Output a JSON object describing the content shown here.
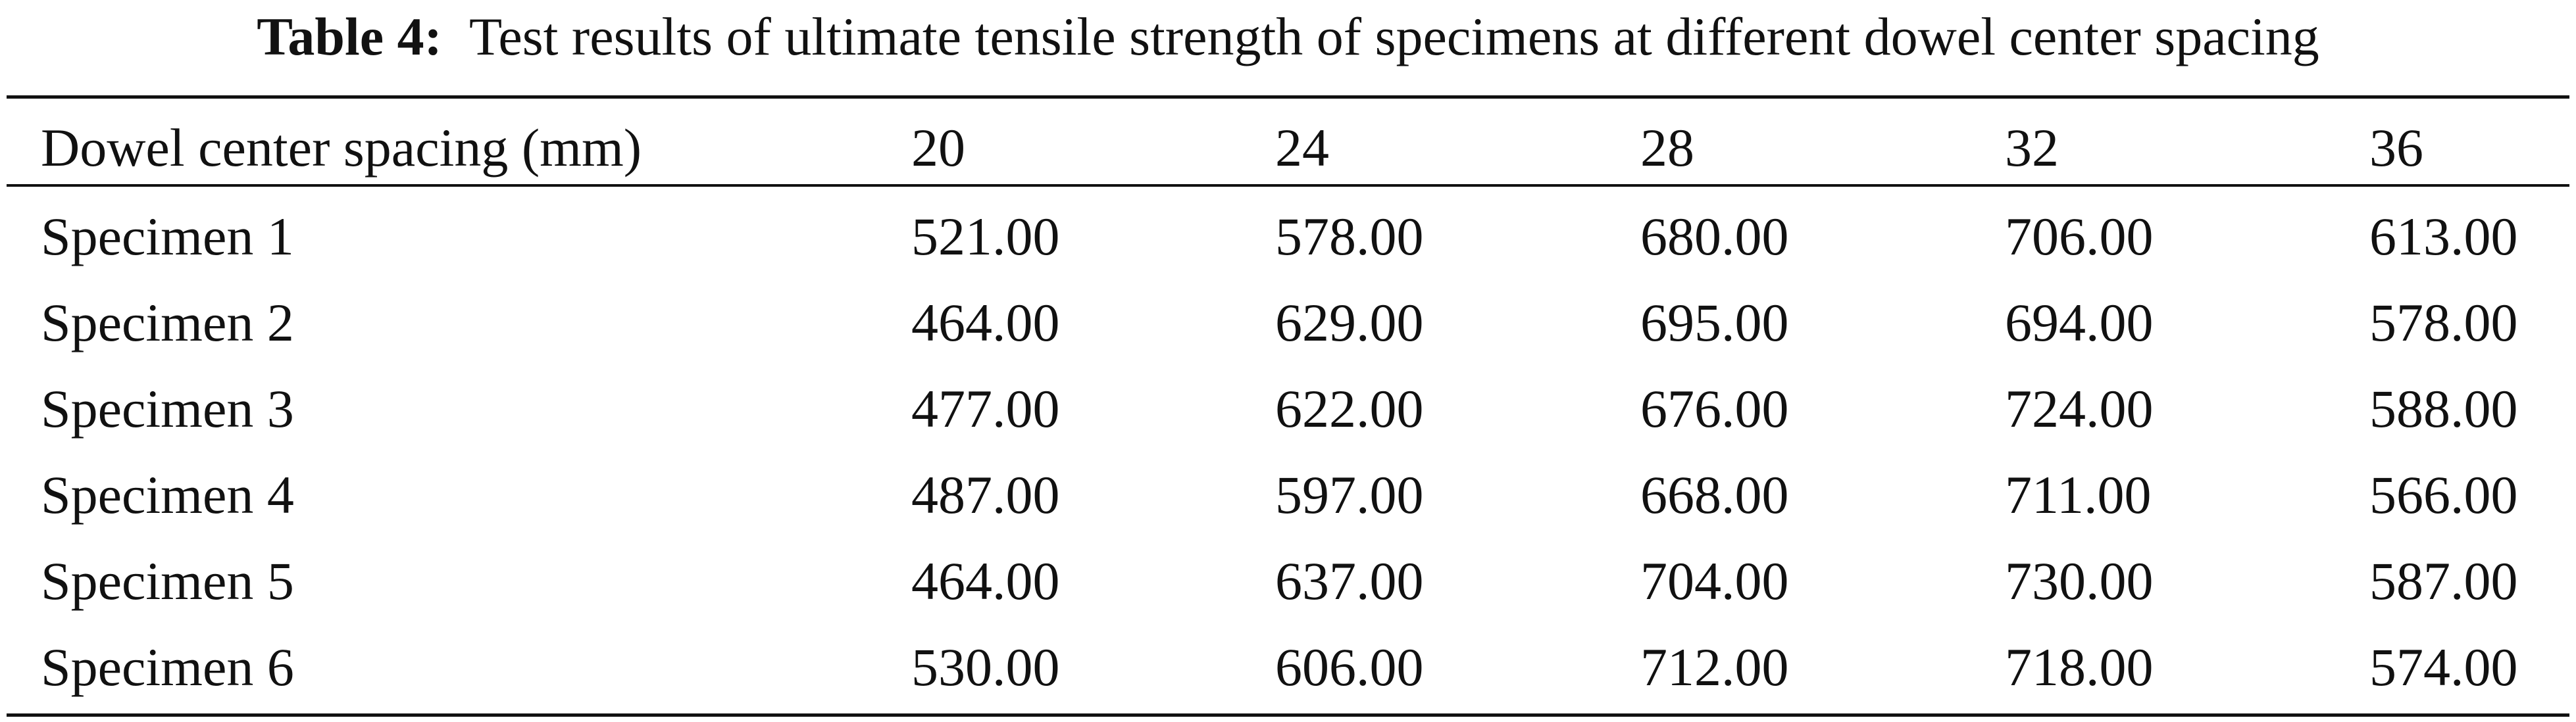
{
  "caption": {
    "label": "Table 4:",
    "text": "Test results of ultimate tensile strength of specimens at different dowel center spacing"
  },
  "table": {
    "header": [
      "Dowel center spacing (mm)",
      "20",
      "24",
      "28",
      "32",
      "36"
    ],
    "rows": [
      [
        "Specimen 1",
        "521.00",
        "578.00",
        "680.00",
        "706.00",
        "613.00"
      ],
      [
        "Specimen 2",
        "464.00",
        "629.00",
        "695.00",
        "694.00",
        "578.00"
      ],
      [
        "Specimen 3",
        "477.00",
        "622.00",
        "676.00",
        "724.00",
        "588.00"
      ],
      [
        "Specimen 4",
        "487.00",
        "597.00",
        "668.00",
        "711.00",
        "566.00"
      ],
      [
        "Specimen 5",
        "464.00",
        "637.00",
        "704.00",
        "730.00",
        "587.00"
      ],
      [
        "Specimen 6",
        "530.00",
        "606.00",
        "712.00",
        "718.00",
        "574.00"
      ]
    ]
  }
}
